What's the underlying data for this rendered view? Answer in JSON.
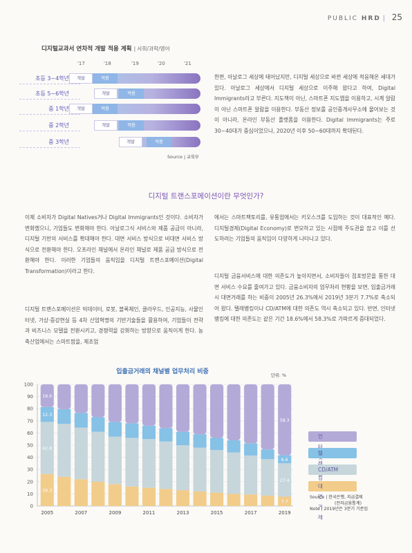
{
  "header": {
    "brand": "PUBLIC",
    "brand_bold": "HRD",
    "page": "25"
  },
  "roadmap": {
    "title": "디지털교과서 연차적 개발 적용 계획",
    "subtitle": "| 사회/과학/영어",
    "years": [
      "'17",
      "'18",
      "'19",
      "'20",
      "'21"
    ],
    "rows": [
      {
        "label": "초등 3~4학년",
        "boxes": [
          "개발",
          "적용"
        ]
      },
      {
        "label": "초등 5~6학년",
        "boxes": [
          "개발",
          "적용"
        ]
      },
      {
        "label": "중 1학년",
        "boxes": [
          "개발",
          "적용"
        ]
      },
      {
        "label": "중 2학년",
        "boxes": [
          "개발",
          "적용"
        ]
      },
      {
        "label": "중 3학년",
        "boxes": [
          "개발",
          "적용"
        ]
      }
    ],
    "source": "Source | 교육부"
  },
  "intro_paragraph": "한편, 아날로그 세상에 태어났지만, 디지털 세상으로 바뀐 세상에 적응해온 세대가 있다. 아날로그 세상에서 디지털 세상으로 이주해 왔다고 하여, Digital Immigrants라고 부른다. 지도책이 아닌, 스마트폰 지도앱을 이용하고, 시계 알람이 아닌 스마트폰 알람을 이용한다. 부동산 정보를 공인중개사무소에 물어보는 것이 아니라, 온라인 부동산 플랫폼을 이용한다. Digital Immigrants는 주로 30~40대가 중심이었으나, 2020년 이후 50~60대까지 확대된다.",
  "section_title": "디지털 트랜스포메이션이란 무엇인가?",
  "body": {
    "left_1": "이제 소비자가 Digital Natives거나 Digital Immigrants인 것이다. 소비자가 변화했으니, 기업들도 변화해야 한다. 아날로그식 서비스와 제품 공급이 아니라, 디지털 기반의 서비스를 확대해야 한다. 대면 서비스 방식으로 비대면 서비스 방식으로 전환해야 한다. 오프라인 채널에서 온라인 채널로 제품 공급 방식으로 전환해야 한다. 이러한 기업들의 움직임을 디지털 트랜스포메이션(Digital Transformation)이라고 한다.",
    "left_2": "디지털 트랜스포메이션은 빅데이터, 로봇, 블록체인, 클라우드, 인공지능, 사물인터넷, 가상·증강현실 등 4차 산업혁명의 기반기술들을 활용하여, 기업들이 전략과 비즈니스 모델을 전환시키고, 경쟁력을 강화하는 방향으로 움직이게 한다. 농축산업에서는 스마트팜을, 제조업",
    "right_1": "에서는 스마트팩토리를, 유통업에서는 키오스크를 도입하는 것이 대표적인 예다. 디지털경제(Digital Economy)로 변모하고 있는 시점에 주도권을 잡고 이를 선도하려는 기업들의 움직임이 다양하게 나타나고 있다.",
    "right_2": "디지털 금융서비스에 대한 의존도가 높아지면서, 소비자들이 점포방문을 통한 대면 서비스 수요를 줄여가고 있다. 금융소비자의 업무처리 현황을 보면, 입출금거래시 대면거래를 하는 비중이 2005년 26.3%에서 2019년 3분기 7.7%로 축소되어 왔다. 텔레뱅킹이나 CD/ATM에 대한 의존도 역시 축소되고 있다. 반면, 인터넷뱅킹에 대한 의존도는 같은 기간 18.6%에서 58.3%로 가파르게 증대되었다."
  },
  "chart_data": {
    "type": "bar",
    "stacked": true,
    "title": "입출금거래의 채널별 업무처리 비중",
    "unit": "단위: %",
    "x": [
      "2005",
      "2006",
      "2007",
      "2008",
      "2009",
      "2010",
      "2011",
      "2012",
      "2013",
      "2014",
      "2015",
      "2016",
      "2017",
      "2018",
      "2019"
    ],
    "xticks": [
      "2005",
      "2007",
      "2009",
      "2011",
      "2013",
      "2015",
      "2017",
      "2019"
    ],
    "ylim": [
      0,
      100
    ],
    "yticks": [
      0,
      10,
      20,
      30,
      40,
      50,
      60,
      70,
      80,
      90,
      100
    ],
    "series": [
      {
        "name": "대면거래",
        "color": "#f2cc8a",
        "values": [
          26.3,
          24,
          22,
          20,
          18,
          16,
          15,
          14,
          13,
          12,
          11,
          10,
          9.5,
          8.5,
          7.7
        ],
        "labels": {
          "0": "26.3",
          "14": "7.7"
        }
      },
      {
        "name": "CD/ATM",
        "color": "#c6d6db",
        "values": [
          42.8,
          43.6,
          42.5,
          41,
          39,
          40,
          40,
          39,
          37,
          36,
          35,
          34,
          32,
          30,
          27.4
        ],
        "labels": {
          "0": "42.8",
          "14": "27.4"
        }
      },
      {
        "name": "텔레뱅킹",
        "color": "#86c1e6",
        "values": [
          12.3,
          12,
          12,
          12,
          12,
          12,
          11,
          11,
          11,
          11,
          10,
          10,
          10,
          8,
          6.6
        ],
        "labels": {
          "0": "12.3",
          "14": "6.6"
        }
      },
      {
        "name": "인터넷뱅킹",
        "color": "#b3aad8",
        "values": [
          18.6,
          20.4,
          23.5,
          27,
          31,
          32,
          34,
          36,
          39,
          41,
          44,
          46,
          48.5,
          53.5,
          58.3
        ],
        "labels": {
          "0": "18.6",
          "14": "58.3"
        }
      }
    ],
    "legend": [
      "인터넷뱅킹",
      "텔레뱅킹",
      "CD/ATM",
      "대면거래"
    ],
    "legend_position": "right",
    "source": [
      "Source | 한국은행, 지급결제",
      "(전자금융통계)",
      "Note | 2019년은 3분기 기준임"
    ]
  }
}
